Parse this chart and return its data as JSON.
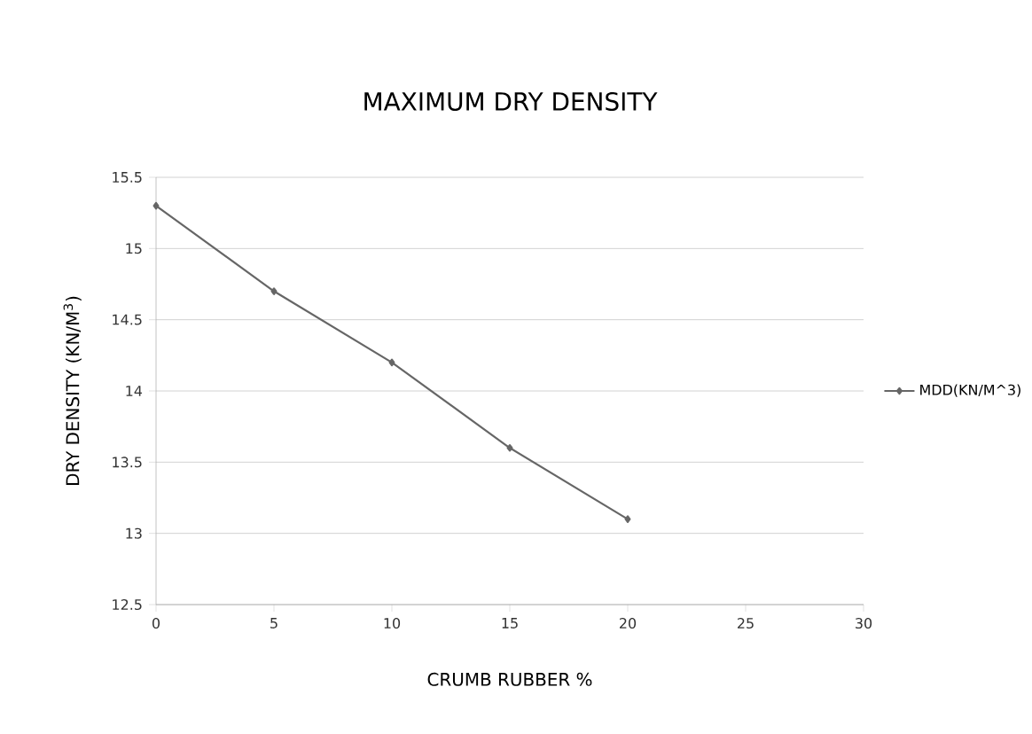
{
  "chart_data": {
    "type": "line",
    "title": "MAXIMUM DRY DENSITY",
    "xlabel": "CRUMB RUBBER %",
    "ylabel": "DRY DENSITY (KN/M$^{3}$)",
    "x": [
      0,
      5,
      10,
      15,
      20
    ],
    "series": [
      {
        "name": "MDD(KN/M^3)",
        "color": "#666666",
        "values": [
          15.3,
          14.7,
          14.2,
          13.6,
          13.1
        ]
      }
    ],
    "xlim": [
      0,
      30
    ],
    "xticks": [
      0,
      5,
      10,
      15,
      20,
      25,
      30
    ],
    "ylim": [
      12.5,
      15.5
    ],
    "yticks": [
      12.5,
      13,
      13.5,
      14,
      14.5,
      15,
      15.5
    ],
    "grid": "y",
    "legend": "right",
    "marker": "diamond",
    "line_style": "solid"
  }
}
